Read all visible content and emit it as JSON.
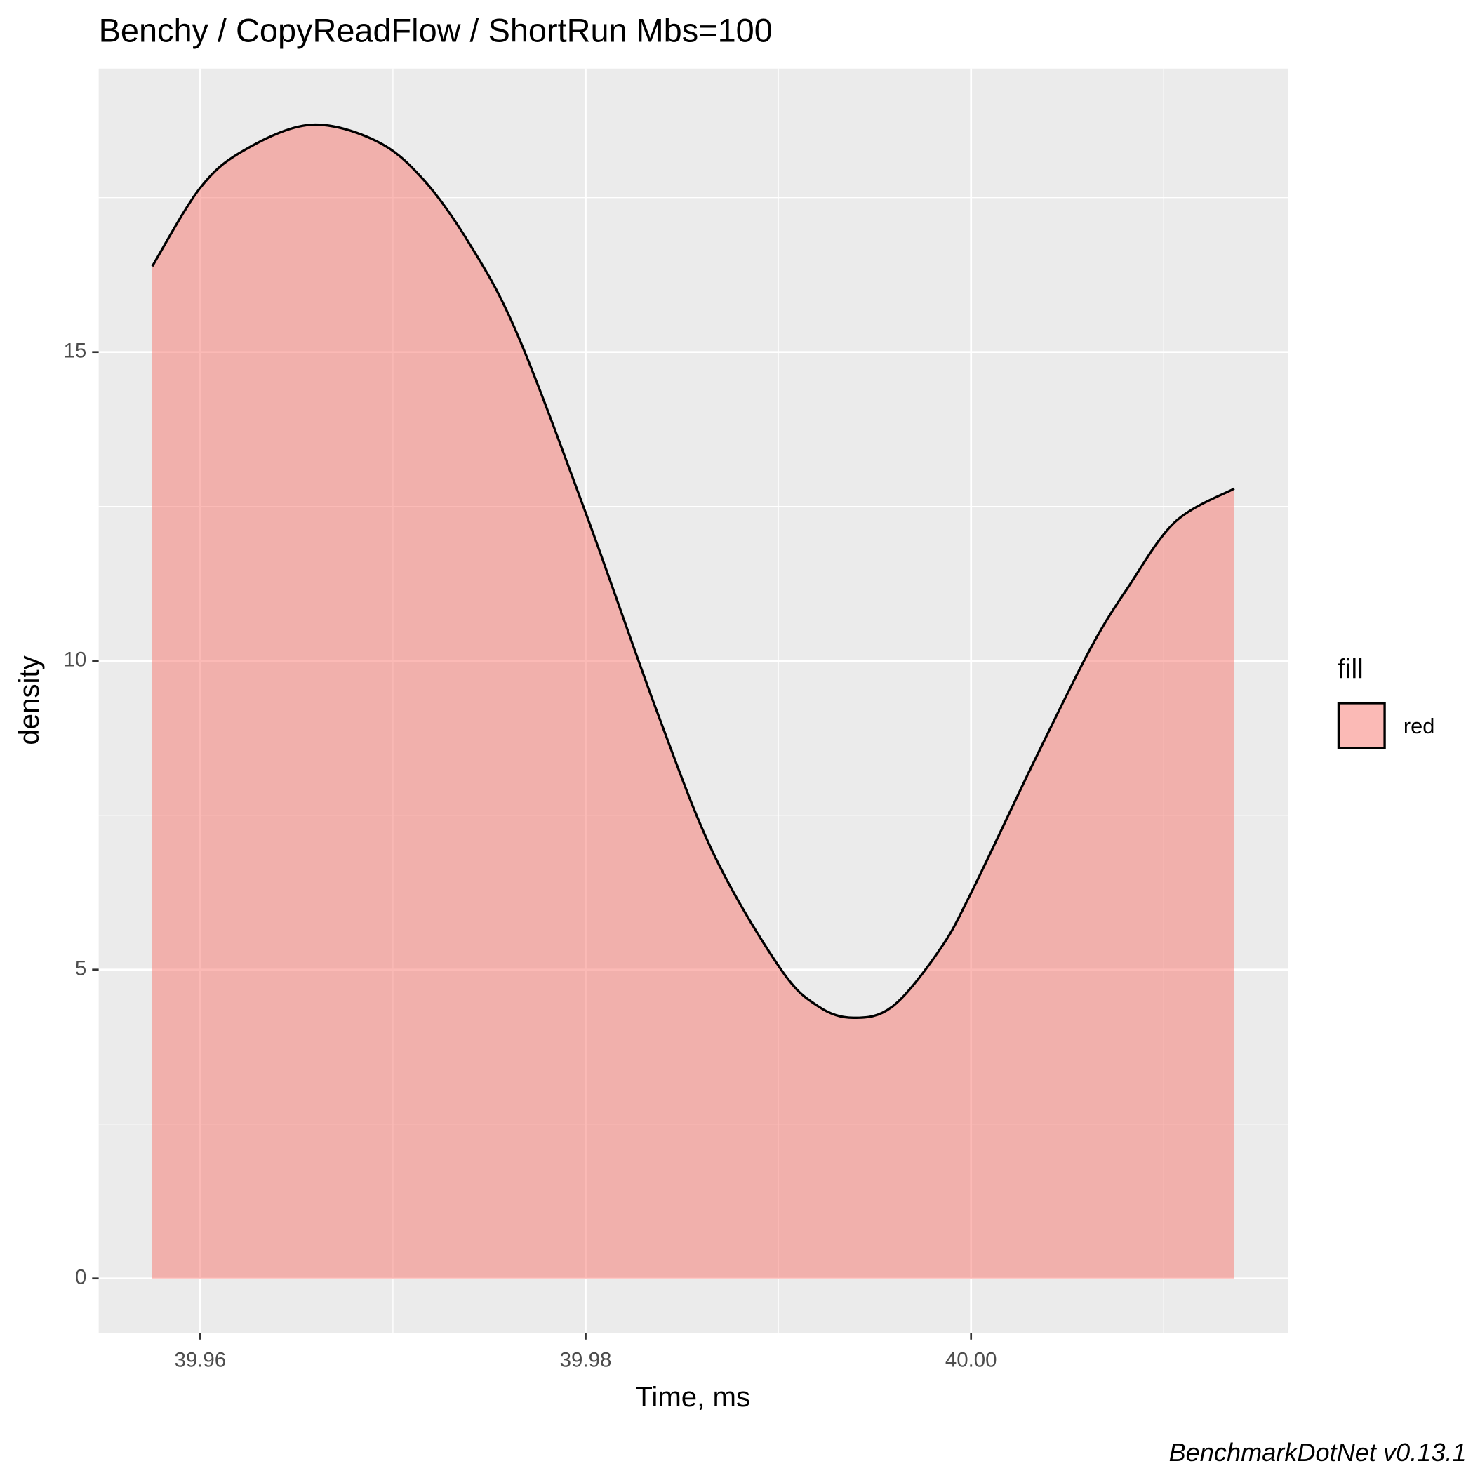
{
  "chart_data": {
    "type": "density",
    "title": "Benchy / CopyReadFlow / ShortRun Mbs=100",
    "x_label": "Time, ms",
    "y_label": "density",
    "caption": "BenchmarkDotNet v0.13.1",
    "legend_title": "fill",
    "series": [
      {
        "name": "red",
        "color": "#F8766D",
        "opacity": 0.5,
        "x": [
          39.95751,
          39.96,
          39.96229,
          39.96571,
          39.96912,
          39.97156,
          39.974,
          39.97644,
          39.98,
          39.98376,
          39.98668,
          39.9901,
          39.99205,
          39.9939,
          39.99595,
          39.99839,
          40.0,
          40.00327,
          40.0062,
          40.00815,
          40.01059,
          40.01366
        ],
        "values": [
          16.39,
          17.66,
          18.27,
          18.68,
          18.42,
          17.8,
          16.74,
          15.3,
          12.4,
          9.13,
          6.85,
          5.02,
          4.41,
          4.22,
          4.41,
          5.33,
          6.24,
          8.37,
          10.2,
          11.19,
          12.25,
          12.79
        ]
      }
    ],
    "xlim": [
      39.95473,
      40.01644
    ],
    "ylim": [
      -0.883,
      19.59
    ],
    "xticks": [
      39.96,
      39.98,
      {
        "value": 40,
        "label": "40.00"
      }
    ],
    "yticks": [
      0,
      5,
      10,
      15
    ],
    "minor_xticks": [
      39.97,
      39.99,
      40.01
    ],
    "minor_yticks": [
      2.5,
      7.5,
      12.5,
      17.5
    ],
    "grid": true
  }
}
